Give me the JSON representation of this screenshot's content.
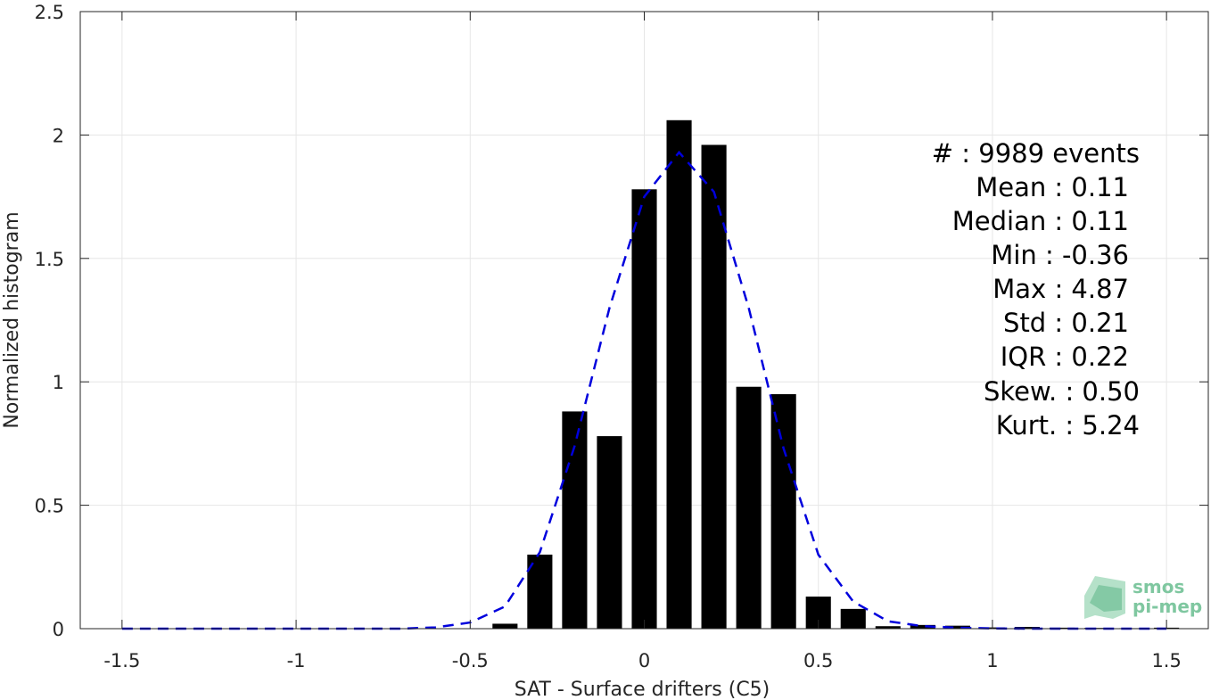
{
  "chart_data": {
    "type": "bar",
    "xlabel": "SAT - Surface drifters (C5)",
    "ylabel": "Normalized histogram",
    "xlim": [
      -1.62,
      1.62
    ],
    "ylim": [
      0,
      2.5
    ],
    "xticks": [
      "-1.5",
      "-1",
      "-0.5",
      "0",
      "0.5",
      "1",
      "1.5"
    ],
    "xtick_values": [
      -1.5,
      -1,
      -0.5,
      0,
      0.5,
      1,
      1.5
    ],
    "yticks": [
      "0",
      "0.5",
      "1",
      "1.5",
      "2",
      "2.5"
    ],
    "ytick_values": [
      0,
      0.5,
      1,
      1.5,
      2,
      2.5
    ],
    "grid": true,
    "bar_color": "#000000",
    "bars": {
      "x": [
        -0.4,
        -0.3,
        -0.2,
        -0.1,
        0.0,
        0.1,
        0.2,
        0.3,
        0.4,
        0.5,
        0.6,
        0.7,
        0.8,
        0.9,
        1.0,
        1.1,
        1.2,
        1.3,
        1.4,
        1.5
      ],
      "values": [
        0.02,
        0.3,
        0.88,
        0.78,
        1.78,
        2.06,
        1.96,
        0.98,
        0.95,
        0.13,
        0.08,
        0.01,
        0.015,
        0.012,
        0.005,
        0.007,
        0.004,
        0.003,
        0.002,
        0.004
      ]
    },
    "fit_line": {
      "color": "#0000dd",
      "style": "dashed",
      "x": [
        -1.5,
        -1.4,
        -1.3,
        -1.2,
        -1.1,
        -1.0,
        -0.9,
        -0.8,
        -0.7,
        -0.6,
        -0.5,
        -0.4,
        -0.3,
        -0.2,
        -0.1,
        0.0,
        0.1,
        0.2,
        0.3,
        0.4,
        0.5,
        0.6,
        0.7,
        0.8,
        0.9,
        1.0,
        1.1,
        1.2,
        1.3,
        1.4,
        1.5
      ],
      "y": [
        0,
        0,
        0,
        0,
        0,
        0,
        0,
        0,
        0,
        0.005,
        0.025,
        0.09,
        0.31,
        0.74,
        1.3,
        1.75,
        1.93,
        1.77,
        1.3,
        0.73,
        0.3,
        0.11,
        0.03,
        0.01,
        0.004,
        0.001,
        0,
        0,
        0,
        0,
        0
      ]
    }
  },
  "stats": [
    {
      "label": "#  : 9989 events"
    },
    {
      "label": "Mean : 0.11"
    },
    {
      "label": "Median : 0.11"
    },
    {
      "label": "Min : -0.36"
    },
    {
      "label": "Max : 4.87"
    },
    {
      "label": "Std : 0.21"
    },
    {
      "label": "IQR : 0.22"
    },
    {
      "label": "Skew. : 0.50"
    },
    {
      "label": "Kurt. : 5.24"
    }
  ],
  "logo": {
    "line1": "smos",
    "line2": "pi-mep"
  },
  "colors": {
    "grid": "#e6e6e6",
    "axis": "#262626",
    "logo": "#7fc7a0"
  }
}
